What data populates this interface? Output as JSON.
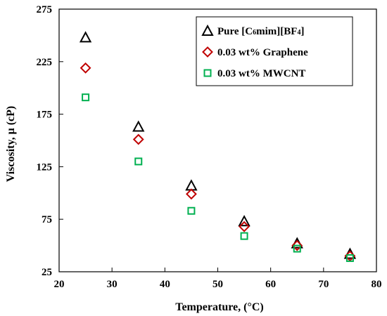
{
  "chart_data": {
    "type": "scatter",
    "xlabel": "Temperature, (°C)",
    "ylabel": "Viscosity, μ (cP)",
    "xlim": [
      20,
      80
    ],
    "ylim": [
      25,
      275
    ],
    "xticks": [
      "20",
      "30",
      "40",
      "50",
      "60",
      "70",
      "80"
    ],
    "yticks": [
      "25",
      "75",
      "125",
      "175",
      "225",
      "275"
    ],
    "grid": false,
    "legend_position": "top-right",
    "series": [
      {
        "name": "Pure [C6mim][BF4]",
        "legend_parts": [
          {
            "text": "Pure [C",
            "sub": false
          },
          {
            "text": "6",
            "sub": true
          },
          {
            "text": "mim][BF",
            "sub": false
          },
          {
            "text": "4",
            "sub": true
          },
          {
            "text": "]",
            "sub": false
          }
        ],
        "marker": "triangle",
        "color": "#000000",
        "x": [
          25,
          35,
          45,
          55,
          65,
          75
        ],
        "y": [
          248,
          163,
          107,
          73,
          52,
          42
        ]
      },
      {
        "name": "0.03 wt% Graphene",
        "legend_parts": [
          {
            "text": "0.03 wt% Graphene",
            "sub": false
          }
        ],
        "marker": "diamond",
        "color": "#c00000",
        "x": [
          25,
          35,
          45,
          55,
          65,
          75
        ],
        "y": [
          219,
          151,
          99,
          68,
          50,
          40
        ]
      },
      {
        "name": "0.03 wt% MWCNT",
        "legend_parts": [
          {
            "text": "0.03 wt% MWCNT",
            "sub": false
          }
        ],
        "marker": "square",
        "color": "#00b050",
        "x": [
          25,
          35,
          45,
          55,
          65,
          75
        ],
        "y": [
          191,
          130,
          83,
          59,
          47,
          38
        ]
      }
    ]
  }
}
